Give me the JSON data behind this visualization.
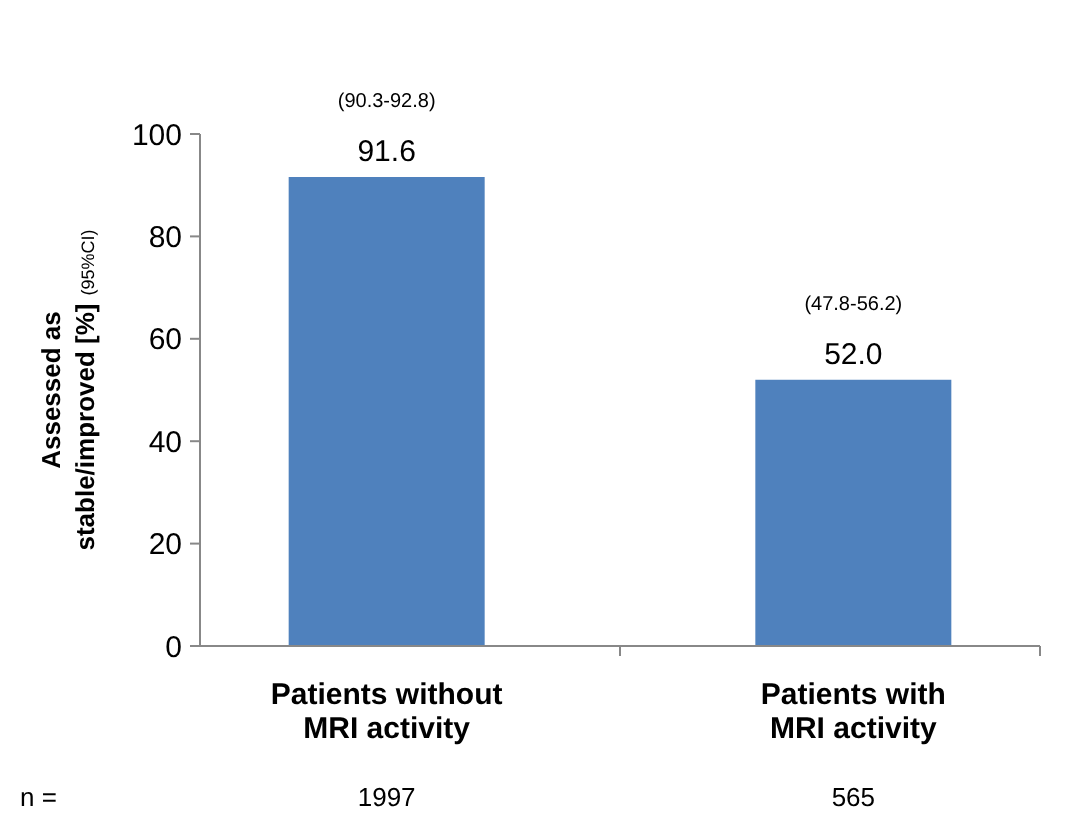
{
  "chart_data": {
    "type": "bar",
    "ylabel": "Assessed as stable/improved [%] $_{(95%CI)}$",
    "categories": [
      "Patients without MRI activity",
      "Patients with MRI activity"
    ],
    "values": [
      91.6,
      52.0
    ],
    "color": "#4f81bd",
    "value_labels": [
      "91.6",
      "52.0"
    ],
    "ylim": [
      0,
      100
    ],
    "yticks": [
      0,
      20,
      40,
      60,
      80,
      100
    ],
    "grid": false,
    "annotations": [
      "(90.3-92.8)",
      "(47.8-56.2)",
      "n =",
      "1997",
      "565"
    ]
  }
}
